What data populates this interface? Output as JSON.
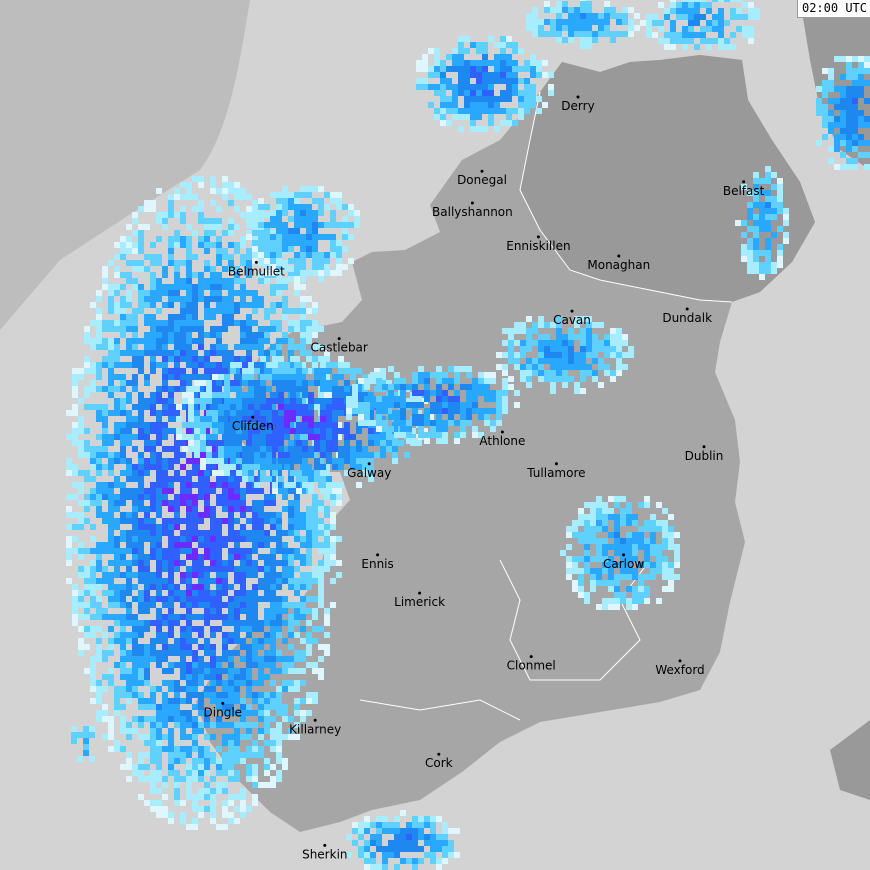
{
  "map": {
    "type": "weather-radar",
    "timestamp": "02:00 UTC",
    "colors": {
      "sea": "#d3d3d3",
      "out_of_range": "#bdbdbd",
      "land": "#a6a6a6",
      "land_dark": "#999999",
      "border": "#ffffff",
      "rain_levels": [
        "#dff6ff",
        "#a8ecff",
        "#5fd0ff",
        "#2aa8ff",
        "#1e88f0",
        "#3060ff",
        "#6a2cff"
      ]
    },
    "cities": [
      {
        "name": "Derry",
        "lon": -7.31,
        "lat": 55.0
      },
      {
        "name": "Donegal",
        "lon": -8.11,
        "lat": 54.65
      },
      {
        "name": "Ballyshannon",
        "lon": -8.19,
        "lat": 54.5
      },
      {
        "name": "Enniskillen",
        "lon": -7.64,
        "lat": 54.34
      },
      {
        "name": "Belfast",
        "lon": -5.93,
        "lat": 54.6
      },
      {
        "name": "Belmullet",
        "lon": -9.99,
        "lat": 54.22
      },
      {
        "name": "Monaghan",
        "lon": -6.97,
        "lat": 54.25
      },
      {
        "name": "Cavan",
        "lon": -7.36,
        "lat": 53.99
      },
      {
        "name": "Dundalk",
        "lon": -6.4,
        "lat": 54.0
      },
      {
        "name": "Castlebar",
        "lon": -9.3,
        "lat": 53.86
      },
      {
        "name": "Clifden",
        "lon": -10.02,
        "lat": 53.49
      },
      {
        "name": "Athlone",
        "lon": -7.94,
        "lat": 53.42
      },
      {
        "name": "Galway",
        "lon": -9.05,
        "lat": 53.27
      },
      {
        "name": "Tullamore",
        "lon": -7.49,
        "lat": 53.27
      },
      {
        "name": "Dublin",
        "lon": -6.26,
        "lat": 53.35
      },
      {
        "name": "Ennis",
        "lon": -8.98,
        "lat": 52.84
      },
      {
        "name": "Carlow",
        "lon": -6.93,
        "lat": 52.84
      },
      {
        "name": "Limerick",
        "lon": -8.63,
        "lat": 52.66
      },
      {
        "name": "Clonmel",
        "lon": -7.7,
        "lat": 52.36
      },
      {
        "name": "Wexford",
        "lon": -6.46,
        "lat": 52.34
      },
      {
        "name": "Dingle",
        "lon": -10.27,
        "lat": 52.14
      },
      {
        "name": "Killarney",
        "lon": -9.5,
        "lat": 52.06
      },
      {
        "name": "Cork",
        "lon": -8.47,
        "lat": 51.9
      },
      {
        "name": "Sherkin",
        "lon": -9.42,
        "lat": 51.47
      }
    ]
  }
}
